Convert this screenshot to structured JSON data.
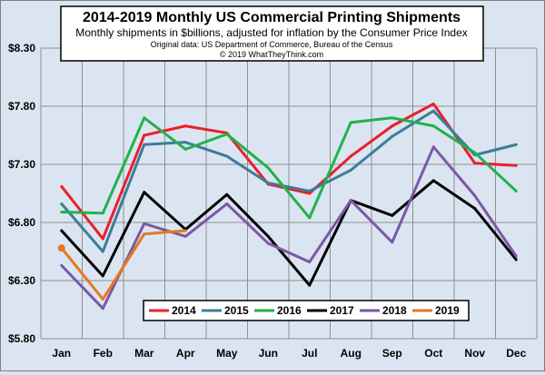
{
  "chart_data": {
    "type": "line",
    "title": "2014-2019 Monthly US Commercial Printing Shipments",
    "subtitle": "Monthly shipments in $billions, adjusted for inflation by the Consumer Price Index",
    "source": "Original data: US Department of Commerce, Bureau of the Census",
    "copyright": "© 2019 WhatTheyThink.com",
    "categories": [
      "Jan",
      "Feb",
      "Mar",
      "Apr",
      "May",
      "Jun",
      "Jul",
      "Aug",
      "Sep",
      "Oct",
      "Nov",
      "Dec"
    ],
    "ylim": [
      5.8,
      8.3
    ],
    "yticks": [
      "$5.80",
      "$6.30",
      "$6.80",
      "$7.30",
      "$7.80",
      "$8.30"
    ],
    "grid": true,
    "legend": "bottom-center",
    "series": [
      {
        "name": "2014",
        "color": "#e8202a",
        "values": [
          7.11,
          6.66,
          7.55,
          7.63,
          7.57,
          7.13,
          7.05,
          7.37,
          7.63,
          7.82,
          7.31,
          7.29
        ]
      },
      {
        "name": "2015",
        "color": "#3d7c9a",
        "values": [
          6.96,
          6.55,
          7.47,
          7.49,
          7.37,
          7.14,
          7.07,
          7.25,
          7.54,
          7.76,
          7.38,
          7.47
        ]
      },
      {
        "name": "2016",
        "color": "#21b24b",
        "values": [
          6.89,
          6.88,
          7.7,
          7.43,
          7.56,
          7.27,
          6.84,
          7.66,
          7.7,
          7.63,
          7.4,
          7.07
        ]
      },
      {
        "name": "2017",
        "color": "#000000",
        "values": [
          6.73,
          6.34,
          7.06,
          6.74,
          7.04,
          6.68,
          6.26,
          6.99,
          6.86,
          7.16,
          6.92,
          6.48
        ]
      },
      {
        "name": "2018",
        "color": "#7b58a6",
        "values": [
          6.43,
          6.06,
          6.79,
          6.68,
          6.96,
          6.62,
          6.46,
          6.99,
          6.63,
          7.45,
          7.03,
          6.51
        ]
      },
      {
        "name": "2019",
        "color": "#e87722",
        "values": [
          6.58,
          6.14,
          6.7,
          6.73,
          null,
          null,
          null,
          null,
          null,
          null,
          null,
          null
        ]
      }
    ]
  }
}
